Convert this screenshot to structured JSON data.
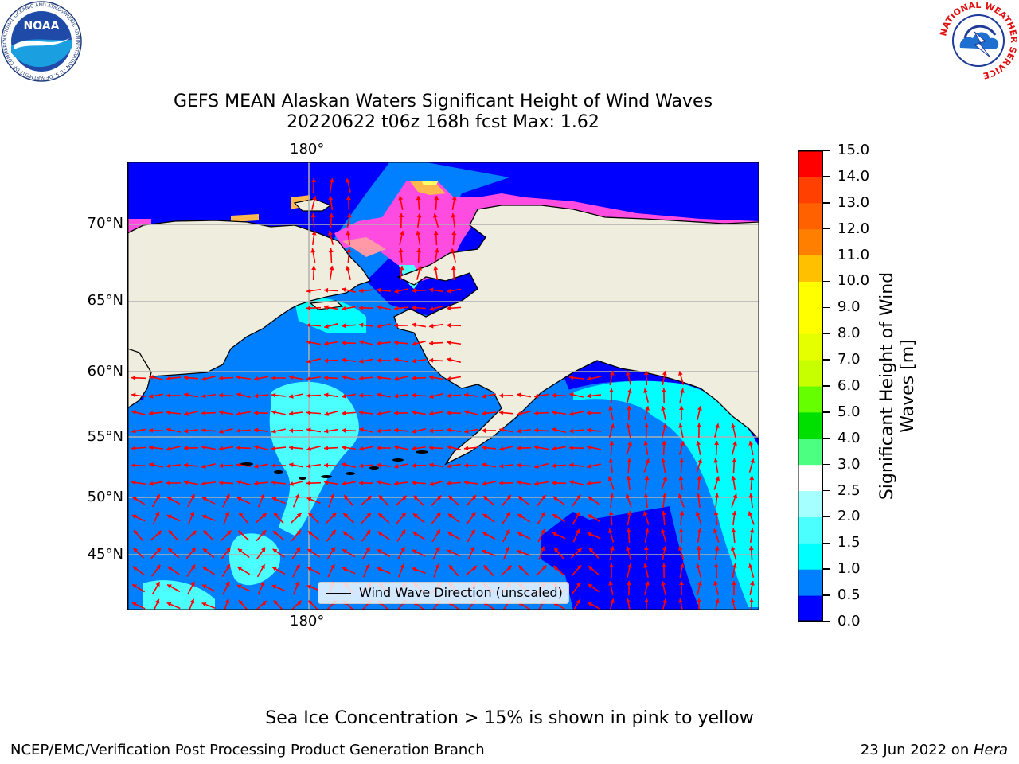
{
  "title": {
    "line1": "GEFS MEAN Alaskan Waters Significant Height of Wind Waves",
    "line2": "20220622 t06z 168h fcst   Max: 1.62"
  },
  "map": {
    "lon_label_top": "180°",
    "lon_label_bottom": "180°",
    "lat_labels": [
      "70°N",
      "65°N",
      "60°N",
      "55°N",
      "50°N",
      "45°N"
    ],
    "legend_label": "Wind Wave Direction (unscaled)",
    "arrow_color": "#ff0000",
    "land_color": "#efedde",
    "wave_colors": [
      "#0000ff",
      "#0080ff",
      "#00ffff",
      "#4cffff",
      "#a6ffff"
    ],
    "ice_colors": [
      "#ff4ce0",
      "#ff99a8",
      "#ffb84d",
      "#ffff66"
    ]
  },
  "colorbar": {
    "title_line1": "Significant Height of Wind",
    "title_line2": "Waves [m]",
    "ticks": [
      "0.0",
      "0.5",
      "1.0",
      "1.5",
      "2.0",
      "2.5",
      "3.0",
      "4.0",
      "5.0",
      "6.0",
      "7.0",
      "8.0",
      "9.0",
      "10.0",
      "11.0",
      "12.0",
      "13.0",
      "14.0",
      "15.0"
    ],
    "colors": [
      "#0000ff",
      "#0080ff",
      "#00ffff",
      "#4cffff",
      "#a6ffff",
      "#ffffff",
      "#4dff80",
      "#00e000",
      "#66ff00",
      "#c8ff00",
      "#e6ff00",
      "#ffff00",
      "#ffff00",
      "#ffc000",
      "#ff8000",
      "#ff6000",
      "#ff4000",
      "#ff0000"
    ]
  },
  "note": "Sea Ice Concentration > 15% is shown in pink to yellow",
  "footer": {
    "left": "NCEP/EMC/Verification Post Processing Product Generation Branch",
    "right_date": "23 Jun 2022 on ",
    "right_host": "Hera"
  },
  "logos": {
    "noaa_text": "NOAA",
    "noaa_ring": "NATIONAL OCEANIC AND ATMOSPHERIC ADMINISTRATION · U.S. DEPARTMENT OF COMMERCE",
    "nws_ring": "NATIONAL WEATHER SERVICE"
  }
}
